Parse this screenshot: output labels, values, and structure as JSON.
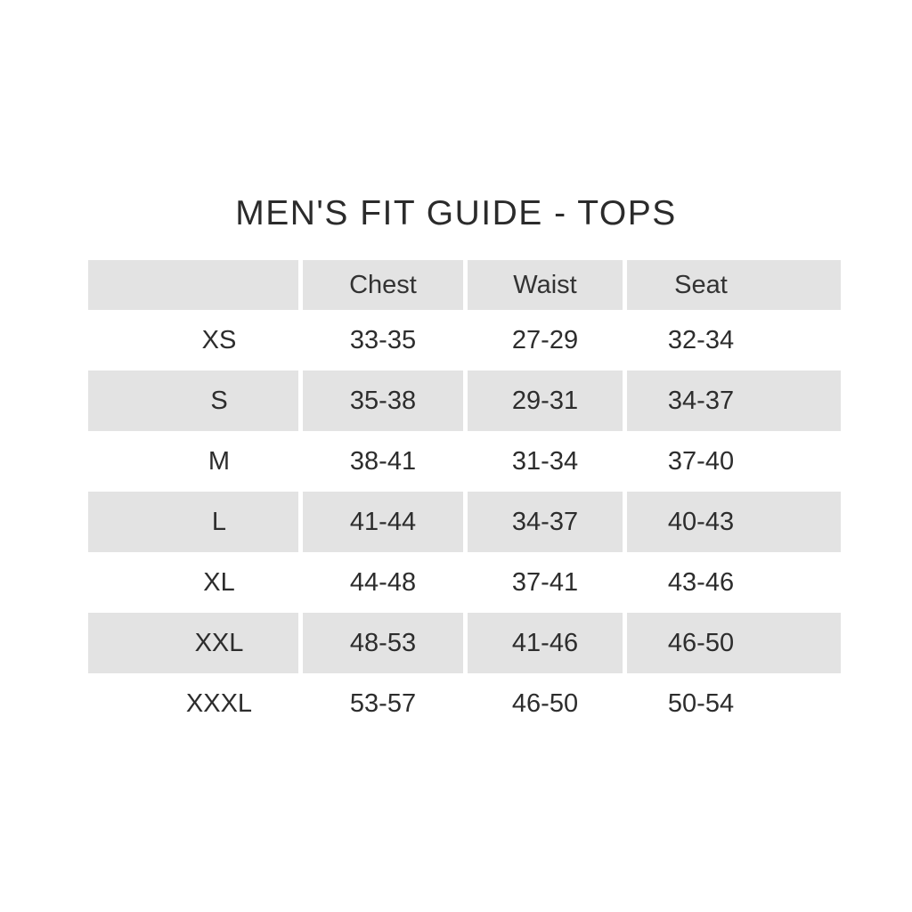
{
  "title": "MEN'S FIT GUIDE - TOPS",
  "chart_data": {
    "type": "table",
    "title": "MEN'S FIT GUIDE - TOPS",
    "columns": [
      "",
      "Chest",
      "Waist",
      "Seat"
    ],
    "rows": [
      {
        "size": "XS",
        "chest": "33-35",
        "waist": "27-29",
        "seat": "32-34"
      },
      {
        "size": "S",
        "chest": "35-38",
        "waist": "29-31",
        "seat": "34-37"
      },
      {
        "size": "M",
        "chest": "38-41",
        "waist": "31-34",
        "seat": "37-40"
      },
      {
        "size": "L",
        "chest": "41-44",
        "waist": "34-37",
        "seat": "40-43"
      },
      {
        "size": "XL",
        "chest": "44-48",
        "waist": "37-41",
        "seat": "43-46"
      },
      {
        "size": "XXL",
        "chest": "48-53",
        "waist": "41-46",
        "seat": "46-50"
      },
      {
        "size": "XXXL",
        "chest": "53-57",
        "waist": "46-50",
        "seat": "50-54"
      }
    ],
    "layout": {
      "shaded_rows": [
        "header",
        "S",
        "L",
        "XXL"
      ],
      "units_note_visible": false
    }
  },
  "colors": {
    "background": "#ffffff",
    "row_shade": "#e3e3e3",
    "text": "#2d2d2d",
    "title_text": "#2b2b2b"
  }
}
